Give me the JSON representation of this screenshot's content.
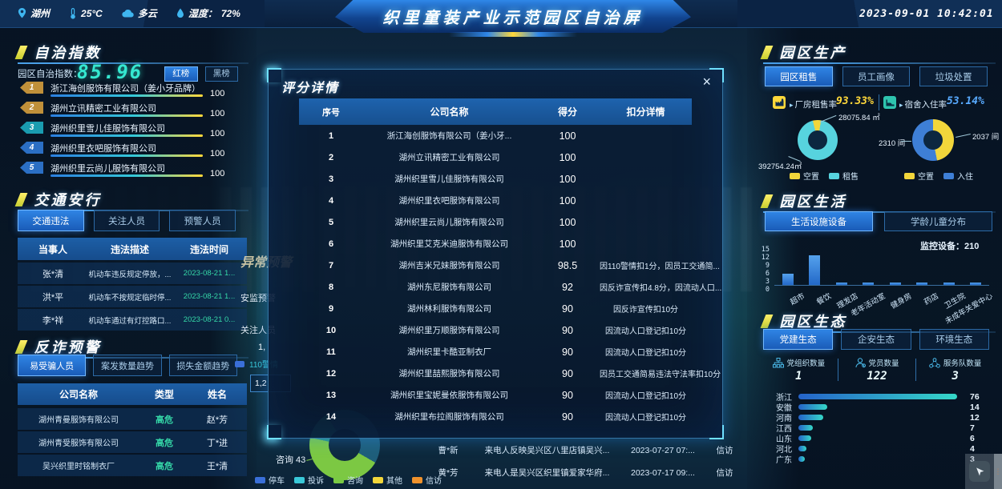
{
  "topbar": {
    "city": "湖州",
    "temperature": "25°C",
    "weather": "多云",
    "humidity_label": "湿度：",
    "humidity_value": "72%",
    "title": "织里童装产业示范园区自治屏",
    "datetime": "2023-09-01 10:42:01"
  },
  "autonomy": {
    "section_title": "自治指数",
    "index_label": "园区自治指数：",
    "index_value": "85.96",
    "tabs": [
      {
        "label": "红榜",
        "active": true
      },
      {
        "label": "黑榜",
        "active": false
      }
    ],
    "ranking": [
      {
        "rank": "1",
        "name": "浙江海创服饰有限公司（姜小牙品牌）",
        "score": "100",
        "badge": "#c0903a"
      },
      {
        "rank": "2",
        "name": "湖州立讯精密工业有限公司",
        "score": "100",
        "badge": "#c0903a"
      },
      {
        "rank": "3",
        "name": "湖州织里雪儿佳服饰有限公司",
        "score": "100",
        "badge": "#1a9cb0"
      },
      {
        "rank": "4",
        "name": "湖州织里衣吧服饰有限公司",
        "score": "100",
        "badge": "#2b6fc4"
      },
      {
        "rank": "5",
        "name": "湖州织里云尚儿服饰有限公司",
        "score": "100",
        "badge": "#2b6fc4"
      }
    ]
  },
  "traffic": {
    "section_title": "交通安行",
    "tabs": [
      {
        "label": "交通违法",
        "active": true
      },
      {
        "label": "关注人员",
        "active": false
      },
      {
        "label": "预警人员",
        "active": false
      }
    ],
    "columns": [
      "当事人",
      "违法描述",
      "违法时间"
    ],
    "rows": [
      {
        "person": "张*清",
        "desc": "机动车违反规定停放，...",
        "time": "2023-08-21 1..."
      },
      {
        "person": "洪*平",
        "desc": "机动车不按规定临时停...",
        "time": "2023-08-21 1..."
      },
      {
        "person": "李*祥",
        "desc": "机动车通过有灯控路口...",
        "time": "2023-08-21 0..."
      }
    ]
  },
  "fraud": {
    "section_title": "反诈预警",
    "tabs": [
      {
        "label": "易受骗人员",
        "active": true
      },
      {
        "label": "案发数量趋势",
        "active": false
      },
      {
        "label": "损失金额趋势",
        "active": false
      }
    ],
    "columns": [
      "公司名称",
      "类型",
      "姓名"
    ],
    "rows": [
      {
        "company": "湖州青曼服饰有限公司",
        "type": "高危",
        "name": "赵*芳"
      },
      {
        "company": "湖州青受服饰有限公司",
        "type": "高危",
        "name": "丁*进"
      },
      {
        "company": "吴兴织里时铭制衣厂",
        "type": "高危",
        "name": "王*清"
      }
    ]
  },
  "modal": {
    "title": "评分详情",
    "close_label": "×",
    "columns": [
      "序号",
      "公司名称",
      "得分",
      "扣分详情"
    ],
    "rows": [
      {
        "no": "1",
        "company": "浙江海创服饰有限公司（姜小牙...",
        "score": "100",
        "detail": ""
      },
      {
        "no": "2",
        "company": "湖州立讯精密工业有限公司",
        "score": "100",
        "detail": ""
      },
      {
        "no": "3",
        "company": "湖州织里雪儿佳服饰有限公司",
        "score": "100",
        "detail": ""
      },
      {
        "no": "4",
        "company": "湖州织里衣吧服饰有限公司",
        "score": "100",
        "detail": ""
      },
      {
        "no": "5",
        "company": "湖州织里云尚儿服饰有限公司",
        "score": "100",
        "detail": ""
      },
      {
        "no": "6",
        "company": "湖州织里艾克米迪服饰有限公司",
        "score": "100",
        "detail": ""
      },
      {
        "no": "7",
        "company": "湖州吉米兄妹服饰有限公司",
        "score": "98.5",
        "detail": "因110警情扣1分，因员工交通简..."
      },
      {
        "no": "8",
        "company": "湖州东尼服饰有限公司",
        "score": "92",
        "detail": "因反诈宣传扣4.8分，因流动人口..."
      },
      {
        "no": "9",
        "company": "湖州林利服饰有限公司",
        "score": "90",
        "detail": "因反诈宣传扣10分"
      },
      {
        "no": "10",
        "company": "湖州织里万顺服饰有限公司",
        "score": "90",
        "detail": "因流动人口登记扣10分"
      },
      {
        "no": "11",
        "company": "湖州织里卡酷亚制衣厂",
        "score": "90",
        "detail": "因流动人口登记扣10分"
      },
      {
        "no": "12",
        "company": "湖州织里喆熙服饰有限公司",
        "score": "90",
        "detail": "因员工交通简易违法守法率扣10分"
      },
      {
        "no": "13",
        "company": "湖州织里宝妮曼依服饰有限公司",
        "score": "90",
        "detail": "因流动人口登记扣10分"
      },
      {
        "no": "14",
        "company": "湖州织里布拉阁服饰有限公司",
        "score": "90",
        "detail": "因流动人口登记扣10分"
      }
    ]
  },
  "production": {
    "section_title": "园区生产",
    "tabs": [
      {
        "label": "园区租售",
        "active": true
      },
      {
        "label": "员工画像",
        "active": false
      },
      {
        "label": "垃圾处置",
        "active": false
      }
    ],
    "factory": {
      "label": "厂房租售率",
      "value": "93.33%"
    },
    "dorm": {
      "label": "宿舍入住率",
      "value": "53.14%"
    },
    "factory_donut": {
      "type": "pie",
      "from": "-14deg",
      "slices": [
        {
          "name": "空置",
          "value": 28075.84,
          "pct": 6.67,
          "color": "#f2d63b",
          "label": "28075.84 ㎡"
        },
        {
          "name": "租售",
          "value": 392754.24,
          "pct": 93.33,
          "color": "#57d3de",
          "label": "392754.24㎡"
        }
      ]
    },
    "dorm_donut": {
      "type": "pie",
      "from": "0deg",
      "slices": [
        {
          "name": "空置",
          "value": 2037,
          "pct": 46.86,
          "color": "#f2d63b",
          "label": "2037 间"
        },
        {
          "name": "入住",
          "value": 2310,
          "pct": 53.14,
          "color": "#3e7fd6",
          "label": "2310 间"
        }
      ]
    }
  },
  "living": {
    "section_title": "园区生活",
    "tabs": [
      {
        "label": "生活设施设备",
        "active": true
      },
      {
        "label": "学龄儿童分布",
        "active": false
      }
    ],
    "monitor_label": "监控设备：",
    "monitor_value": "210",
    "chart_data": {
      "type": "bar",
      "categories": [
        "超市",
        "餐饮",
        "理发店",
        "老年活动室",
        "健身房",
        "药店",
        "卫生院",
        "未成年关爱中心"
      ],
      "values": [
        5,
        13,
        1,
        1,
        1,
        1,
        1,
        1
      ],
      "ylim": [
        0,
        15
      ],
      "yticks": [
        "15",
        "12",
        "9",
        "6",
        "3",
        "0"
      ]
    }
  },
  "ecology": {
    "section_title": "园区生态",
    "tabs": [
      {
        "label": "党建生态",
        "active": true
      },
      {
        "label": "企安生态",
        "active": false
      },
      {
        "label": "环境生态",
        "active": false
      }
    ],
    "stats": [
      {
        "label": "党组织数量",
        "value": "1",
        "icon": "org-chart-icon"
      },
      {
        "label": "党员数量",
        "value": "122",
        "icon": "party-member-icon"
      },
      {
        "label": "服务队数量",
        "value": "3",
        "icon": "service-team-icon"
      }
    ],
    "chart_data": {
      "type": "bar",
      "categories": [
        "浙江",
        "安徽",
        "河南",
        "江西",
        "山东",
        "河北",
        "广东"
      ],
      "values": [
        76,
        14,
        12,
        7,
        6,
        4,
        3
      ]
    }
  },
  "underlay": {
    "mid_title_fragment": "异常预警",
    "fragment_1": "安监预警",
    "fragment_2": "关注人员",
    "fragment_num": "1,",
    "fragment_box": "1,2",
    "legend_110": "110警情",
    "donut_callout": "咨询 43",
    "legend": [
      {
        "label": "停车",
        "color": "#3a6fd8"
      },
      {
        "label": "投诉",
        "color": "#39c8d8"
      },
      {
        "label": "咨询",
        "color": "#7ac943"
      },
      {
        "label": "其他",
        "color": "#f2d63b"
      },
      {
        "label": "信访",
        "color": "#f0922c"
      }
    ],
    "rows": [
      {
        "name": "曹*新",
        "desc": "来电人反映吴兴区八里店镇吴兴...",
        "time": "2023-07-27 07:...",
        "type": "信访"
      },
      {
        "name": "黄*芳",
        "desc": "来电人是吴兴区织里镇爱家华府...",
        "time": "2023-07-17 09:...",
        "type": "信访"
      }
    ]
  }
}
